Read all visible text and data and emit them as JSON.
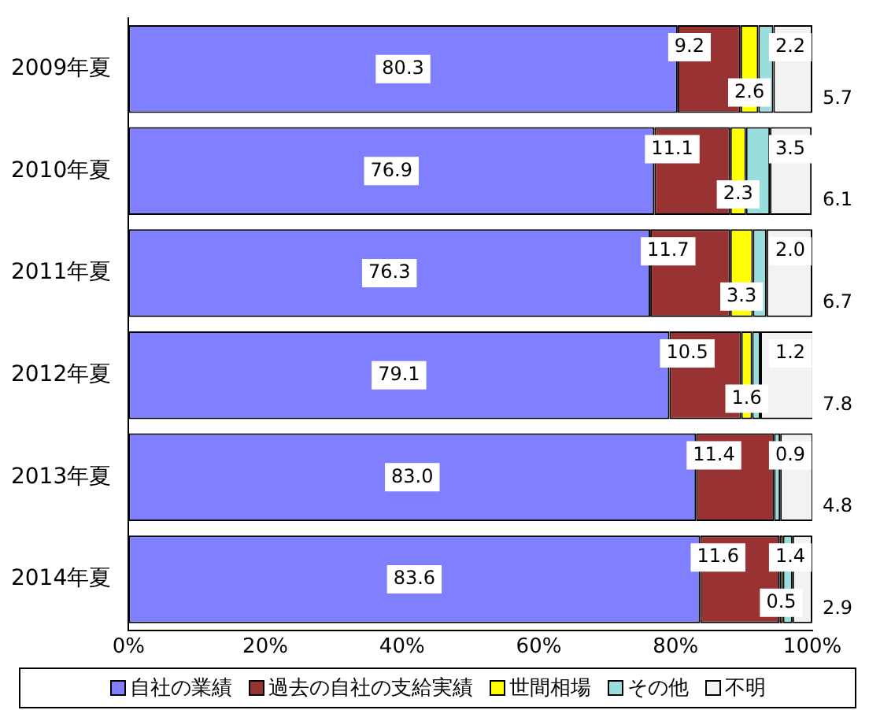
{
  "chart_data": {
    "type": "bar",
    "orientation": "horizontal",
    "stacked": true,
    "categories": [
      "2009年夏",
      "2010年夏",
      "2011年夏",
      "2012年夏",
      "2013年夏",
      "2014年夏"
    ],
    "series": [
      {
        "name": "自社の業績",
        "color": "#8080ff",
        "values": [
          80.3,
          76.9,
          76.3,
          79.1,
          83.0,
          83.6
        ],
        "value_labels": [
          "80.3",
          "76.9",
          "76.3",
          "79.1",
          "83.0",
          "83.6"
        ]
      },
      {
        "name": "過去の自社の支給実績",
        "color": "#993333",
        "values": [
          9.2,
          11.1,
          11.7,
          10.5,
          11.4,
          11.6
        ],
        "value_labels": [
          "9.2",
          "11.1",
          "11.7",
          "10.5",
          "11.4",
          "11.6"
        ]
      },
      {
        "name": "世間相場",
        "color": "#ffff00",
        "values": [
          2.6,
          2.3,
          3.3,
          1.6,
          null,
          0.5
        ],
        "value_labels": [
          "2.6",
          "2.3",
          "3.3",
          "1.6",
          null,
          "0.5"
        ]
      },
      {
        "name": "その他",
        "color": "#99dddd",
        "values": [
          2.2,
          3.5,
          2.0,
          1.2,
          0.9,
          1.4
        ],
        "value_labels": [
          "2.2",
          "3.5",
          "2.0",
          "1.2",
          "0.9",
          "1.4"
        ]
      },
      {
        "name": "不明",
        "color": "#f2f2f2",
        "values": [
          5.7,
          6.1,
          6.7,
          7.8,
          4.8,
          2.9
        ],
        "value_labels": [
          "5.7",
          "6.1",
          "6.7",
          "7.8",
          "4.8",
          "2.9"
        ]
      }
    ],
    "xlim": [
      0,
      100
    ],
    "xticks": [
      {
        "value": 0,
        "label": "0%"
      },
      {
        "value": 20,
        "label": "20%"
      },
      {
        "value": 40,
        "label": "40%"
      },
      {
        "value": 60,
        "label": "60%"
      },
      {
        "value": 80,
        "label": "80%"
      },
      {
        "value": 100,
        "label": "100%"
      }
    ],
    "grid": false,
    "legend": "bottom"
  }
}
